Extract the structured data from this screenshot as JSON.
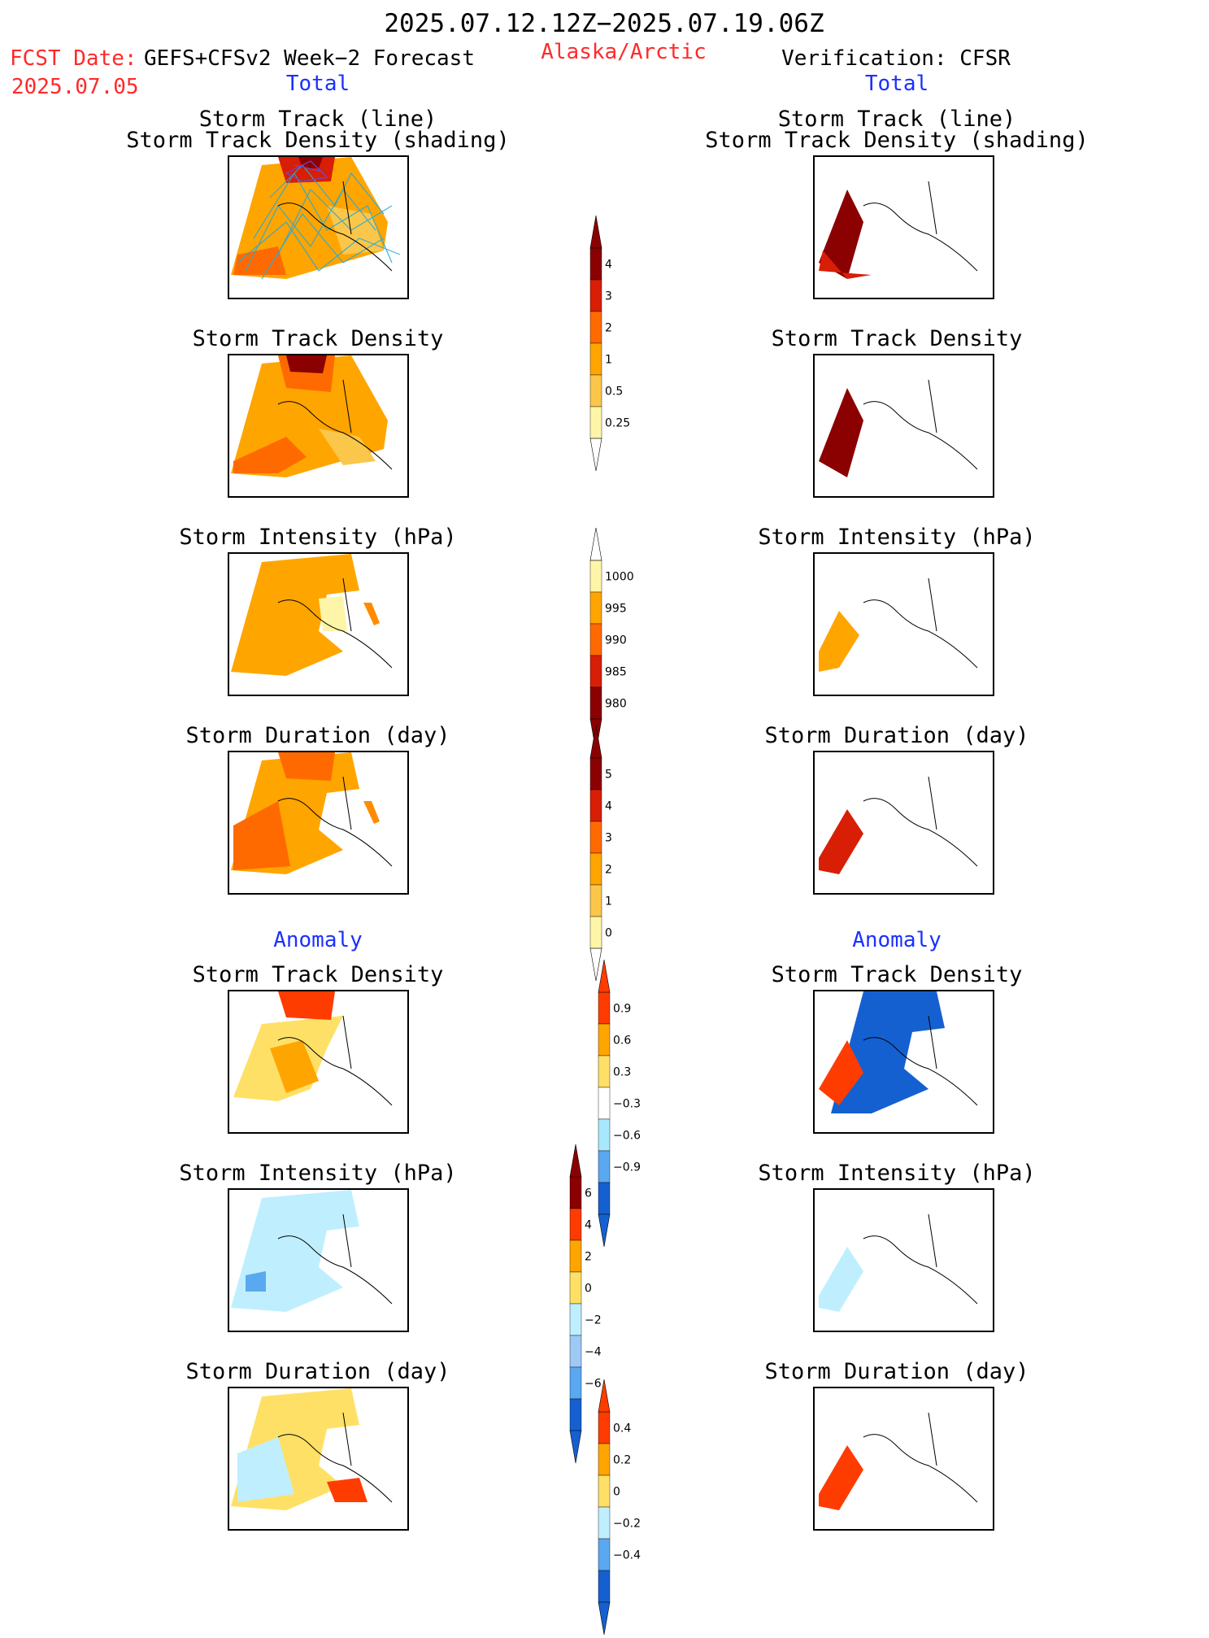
{
  "header": {
    "period": "2025.07.12.12Z−2025.07.19.06Z",
    "fcst_label": "FCST Date:",
    "model": "GEFS+CFSv2 Week−2 Forecast",
    "fcst_date": "2025.07.05",
    "region": "Alaska/Arctic",
    "verification": "Verification: CFSR"
  },
  "sections": {
    "total_left": "Total",
    "total_right": "Total",
    "anomaly_left": "Anomaly",
    "anomaly_right": "Anomaly"
  },
  "panel_titles": {
    "track_line": "Storm Track (line)",
    "track_shading": "Storm Track Density (shading)",
    "density": "Storm Track Density",
    "intensity": "Storm Intensity (hPa)",
    "duration": "Storm Duration (day)"
  },
  "colorbars": {
    "density_total": {
      "ticks": [
        "4",
        "3",
        "2",
        "1",
        "0.5",
        "0.25"
      ],
      "colors": [
        "#8b0000",
        "#d81e05",
        "#ff6a00",
        "#ffa500",
        "#fbc74a",
        "#fff5a8"
      ]
    },
    "intensity_total": {
      "ticks": [
        "1000",
        "995",
        "990",
        "985",
        "980"
      ],
      "colors": [
        "#fff5a8",
        "#ffa500",
        "#ff6a00",
        "#d81e05",
        "#8b0000"
      ]
    },
    "duration_total": {
      "ticks": [
        "5",
        "4",
        "3",
        "2",
        "1",
        "0"
      ],
      "colors": [
        "#8b0000",
        "#d81e05",
        "#ff6a00",
        "#ffa500",
        "#fbc74a",
        "#fff5a8"
      ]
    },
    "density_anom": {
      "ticks": [
        "0.9",
        "0.6",
        "0.3",
        "−0.3",
        "−0.6",
        "−0.9"
      ],
      "colors": [
        "#ff3c00",
        "#ffa500",
        "#ffe066",
        "#ffffff",
        "#a8e8ff",
        "#5aa8f0",
        "#1560d0"
      ]
    },
    "intensity_anom": {
      "ticks": [
        "6",
        "4",
        "2",
        "0",
        "−2",
        "−4",
        "−6"
      ],
      "colors": [
        "#8b0000",
        "#ff3c00",
        "#ffa500",
        "#ffe066",
        "#bfefff",
        "#a0c8f5",
        "#5aa8f0",
        "#1560d0"
      ]
    },
    "duration_anom": {
      "ticks": [
        "0.4",
        "0.2",
        "0",
        "−0.2",
        "−0.4"
      ],
      "colors": [
        "#ff3c00",
        "#ffa500",
        "#ffe066",
        "#bfefff",
        "#5aa8f0",
        "#1560d0"
      ]
    }
  }
}
